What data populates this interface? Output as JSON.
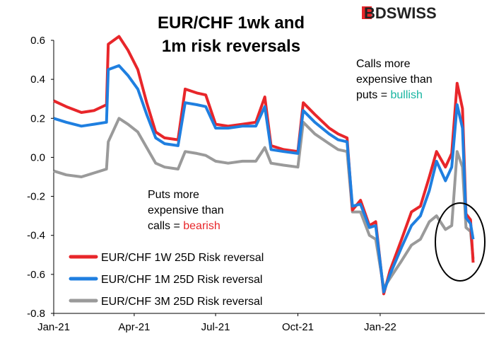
{
  "brand": {
    "name": "BDSWISS",
    "accent": "#e8262a"
  },
  "chart_data": {
    "type": "line",
    "title": [
      "EUR/CHF 1wk and",
      "1m risk reversals"
    ],
    "xlabel": "",
    "ylabel": "",
    "x_ticks": [
      "Jan-21",
      "Apr-21",
      "Jul-21",
      "Oct-21",
      "Jan-22"
    ],
    "y_ticks": [
      "0.6",
      "0.4",
      "0.2",
      "0.0",
      "-0.2",
      "-0.4",
      "-0.6",
      "-0.8"
    ],
    "ylim": [
      -0.8,
      0.6
    ],
    "grid": false,
    "legend_position": "bottom-left",
    "series": [
      {
        "name": "EUR/CHF 1W 25D Risk reversal",
        "color": "#e8262a",
        "points": [
          [
            "2021-01-01",
            0.29
          ],
          [
            "2021-01-15",
            0.26
          ],
          [
            "2021-02-01",
            0.23
          ],
          [
            "2021-02-15",
            0.24
          ],
          [
            "2021-03-01",
            0.27
          ],
          [
            "2021-03-03",
            0.58
          ],
          [
            "2021-03-15",
            0.62
          ],
          [
            "2021-03-25",
            0.55
          ],
          [
            "2021-04-05",
            0.45
          ],
          [
            "2021-04-15",
            0.28
          ],
          [
            "2021-04-25",
            0.13
          ],
          [
            "2021-05-05",
            0.1
          ],
          [
            "2021-05-20",
            0.09
          ],
          [
            "2021-05-28",
            0.35
          ],
          [
            "2021-06-10",
            0.33
          ],
          [
            "2021-06-20",
            0.32
          ],
          [
            "2021-07-01",
            0.17
          ],
          [
            "2021-07-15",
            0.16
          ],
          [
            "2021-07-31",
            0.17
          ],
          [
            "2021-08-15",
            0.18
          ],
          [
            "2021-08-25",
            0.31
          ],
          [
            "2021-09-01",
            0.06
          ],
          [
            "2021-09-15",
            0.04
          ],
          [
            "2021-10-01",
            0.03
          ],
          [
            "2021-10-07",
            0.28
          ],
          [
            "2021-10-20",
            0.22
          ],
          [
            "2021-11-05",
            0.15
          ],
          [
            "2021-11-15",
            0.12
          ],
          [
            "2021-11-25",
            0.1
          ],
          [
            "2021-12-01",
            -0.27
          ],
          [
            "2021-12-10",
            -0.22
          ],
          [
            "2021-12-20",
            -0.35
          ],
          [
            "2021-12-27",
            -0.33
          ],
          [
            "2022-01-05",
            -0.7
          ],
          [
            "2022-01-12",
            -0.58
          ],
          [
            "2022-01-25",
            -0.42
          ],
          [
            "2022-02-05",
            -0.28
          ],
          [
            "2022-02-15",
            -0.25
          ],
          [
            "2022-02-25",
            -0.1
          ],
          [
            "2022-03-05",
            0.03
          ],
          [
            "2022-03-15",
            -0.05
          ],
          [
            "2022-03-22",
            0.02
          ],
          [
            "2022-03-28",
            0.38
          ],
          [
            "2022-04-03",
            0.25
          ],
          [
            "2022-04-07",
            -0.29
          ],
          [
            "2022-04-12",
            -0.32
          ],
          [
            "2022-04-15",
            -0.54
          ]
        ]
      },
      {
        "name": "EUR/CHF 1M 25D Risk reversal",
        "color": "#1f7fe0",
        "points": [
          [
            "2021-01-01",
            0.2
          ],
          [
            "2021-01-15",
            0.18
          ],
          [
            "2021-02-01",
            0.16
          ],
          [
            "2021-02-15",
            0.17
          ],
          [
            "2021-03-01",
            0.18
          ],
          [
            "2021-03-03",
            0.45
          ],
          [
            "2021-03-15",
            0.47
          ],
          [
            "2021-03-25",
            0.42
          ],
          [
            "2021-04-05",
            0.35
          ],
          [
            "2021-04-15",
            0.22
          ],
          [
            "2021-04-25",
            0.1
          ],
          [
            "2021-05-05",
            0.07
          ],
          [
            "2021-05-20",
            0.06
          ],
          [
            "2021-05-28",
            0.28
          ],
          [
            "2021-06-10",
            0.27
          ],
          [
            "2021-06-20",
            0.26
          ],
          [
            "2021-07-01",
            0.15
          ],
          [
            "2021-07-15",
            0.15
          ],
          [
            "2021-07-31",
            0.16
          ],
          [
            "2021-08-15",
            0.16
          ],
          [
            "2021-08-25",
            0.26
          ],
          [
            "2021-09-01",
            0.04
          ],
          [
            "2021-09-15",
            0.03
          ],
          [
            "2021-10-01",
            0.02
          ],
          [
            "2021-10-07",
            0.24
          ],
          [
            "2021-10-20",
            0.18
          ],
          [
            "2021-11-05",
            0.12
          ],
          [
            "2021-11-15",
            0.09
          ],
          [
            "2021-11-25",
            0.08
          ],
          [
            "2021-12-01",
            -0.25
          ],
          [
            "2021-12-10",
            -0.24
          ],
          [
            "2021-12-20",
            -0.36
          ],
          [
            "2021-12-27",
            -0.35
          ],
          [
            "2022-01-05",
            -0.69
          ],
          [
            "2022-01-12",
            -0.6
          ],
          [
            "2022-01-25",
            -0.46
          ],
          [
            "2022-02-05",
            -0.35
          ],
          [
            "2022-02-15",
            -0.3
          ],
          [
            "2022-02-25",
            -0.17
          ],
          [
            "2022-03-05",
            -0.02
          ],
          [
            "2022-03-15",
            -0.12
          ],
          [
            "2022-03-22",
            -0.05
          ],
          [
            "2022-03-28",
            0.27
          ],
          [
            "2022-04-03",
            0.15
          ],
          [
            "2022-04-07",
            -0.31
          ],
          [
            "2022-04-12",
            -0.34
          ],
          [
            "2022-04-15",
            -0.42
          ]
        ]
      },
      {
        "name": "EUR/CHF 3M 25D Risk reversal",
        "color": "#9a9a9a",
        "points": [
          [
            "2021-01-01",
            -0.07
          ],
          [
            "2021-01-15",
            -0.09
          ],
          [
            "2021-02-01",
            -0.1
          ],
          [
            "2021-02-15",
            -0.08
          ],
          [
            "2021-03-01",
            -0.06
          ],
          [
            "2021-03-03",
            0.08
          ],
          [
            "2021-03-15",
            0.2
          ],
          [
            "2021-03-25",
            0.17
          ],
          [
            "2021-04-05",
            0.13
          ],
          [
            "2021-04-15",
            0.05
          ],
          [
            "2021-04-25",
            -0.03
          ],
          [
            "2021-05-05",
            -0.05
          ],
          [
            "2021-05-20",
            -0.06
          ],
          [
            "2021-05-28",
            0.03
          ],
          [
            "2021-06-10",
            0.02
          ],
          [
            "2021-06-20",
            0.01
          ],
          [
            "2021-07-01",
            -0.02
          ],
          [
            "2021-07-15",
            -0.03
          ],
          [
            "2021-07-31",
            -0.02
          ],
          [
            "2021-08-15",
            -0.02
          ],
          [
            "2021-08-25",
            0.05
          ],
          [
            "2021-09-01",
            -0.03
          ],
          [
            "2021-09-15",
            -0.04
          ],
          [
            "2021-10-01",
            -0.05
          ],
          [
            "2021-10-07",
            0.18
          ],
          [
            "2021-10-20",
            0.12
          ],
          [
            "2021-11-05",
            0.07
          ],
          [
            "2021-11-15",
            0.04
          ],
          [
            "2021-11-25",
            0.03
          ],
          [
            "2021-12-01",
            -0.28
          ],
          [
            "2021-12-10",
            -0.28
          ],
          [
            "2021-12-20",
            -0.4
          ],
          [
            "2021-12-27",
            -0.42
          ],
          [
            "2022-01-05",
            -0.67
          ],
          [
            "2022-01-12",
            -0.62
          ],
          [
            "2022-01-25",
            -0.53
          ],
          [
            "2022-02-05",
            -0.45
          ],
          [
            "2022-02-15",
            -0.42
          ],
          [
            "2022-02-25",
            -0.33
          ],
          [
            "2022-03-05",
            -0.3
          ],
          [
            "2022-03-15",
            -0.37
          ],
          [
            "2022-03-22",
            -0.35
          ],
          [
            "2022-03-28",
            0.03
          ],
          [
            "2022-04-03",
            -0.05
          ],
          [
            "2022-04-07",
            -0.36
          ],
          [
            "2022-04-12",
            -0.38
          ],
          [
            "2022-04-15",
            -0.52
          ]
        ]
      }
    ],
    "annotations": [
      {
        "lines": [
          "Calls more",
          "expensive than"
        ],
        "prefix": "puts = ",
        "highlight": "bullish",
        "highlight_color": "#17b5a1"
      },
      {
        "lines": [
          "Puts more",
          "expensive than"
        ],
        "prefix": "calls = ",
        "highlight": "bearish",
        "highlight_color": "#e8262a"
      }
    ]
  }
}
